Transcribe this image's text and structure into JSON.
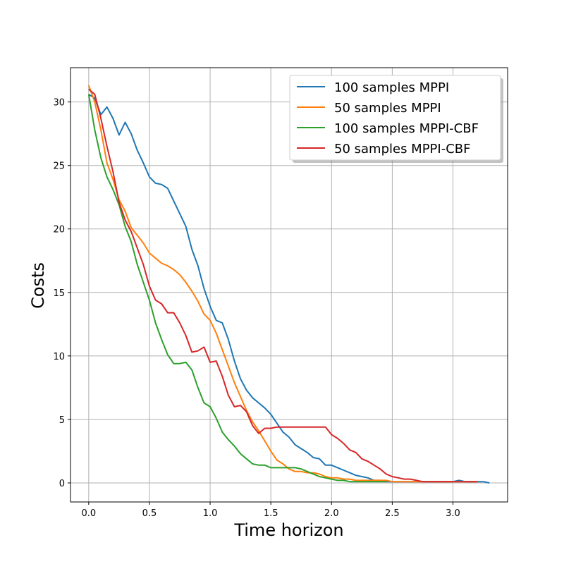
{
  "chart_data": {
    "type": "line",
    "title": "",
    "xlabel": "Time horizon",
    "ylabel": "Costs",
    "xlim": [
      -0.15,
      3.45
    ],
    "ylim": [
      -1.5,
      32.7
    ],
    "xticks": [
      "0.0",
      "0.5",
      "1.0",
      "1.5",
      "2.0",
      "2.5",
      "3.0"
    ],
    "yticks": [
      "0",
      "5",
      "10",
      "15",
      "20",
      "25",
      "30"
    ],
    "grid": true,
    "legend_position": "top-right",
    "series": [
      {
        "name": "100 samples MPPI",
        "color": "#1f77b4",
        "x": [
          0.0,
          0.05,
          0.1,
          0.15,
          0.2,
          0.25,
          0.3,
          0.35,
          0.4,
          0.45,
          0.5,
          0.55,
          0.6,
          0.65,
          0.7,
          0.75,
          0.8,
          0.85,
          0.9,
          0.95,
          1.0,
          1.05,
          1.1,
          1.15,
          1.2,
          1.25,
          1.3,
          1.35,
          1.4,
          1.45,
          1.5,
          1.55,
          1.6,
          1.65,
          1.7,
          1.75,
          1.8,
          1.85,
          1.9,
          1.95,
          2.0,
          2.05,
          2.1,
          2.15,
          2.2,
          2.25,
          2.3,
          2.35,
          2.4,
          2.45,
          2.5,
          2.55,
          2.6,
          2.65,
          2.7,
          2.75,
          2.8,
          2.85,
          2.9,
          2.95,
          3.0,
          3.05,
          3.1,
          3.15,
          3.2,
          3.25,
          3.3
        ],
        "values": [
          30.6,
          30.3,
          29.0,
          29.6,
          28.7,
          27.4,
          28.4,
          27.5,
          26.2,
          25.2,
          24.1,
          23.6,
          23.5,
          23.2,
          22.2,
          21.2,
          20.2,
          18.4,
          17.1,
          15.3,
          13.9,
          12.8,
          12.6,
          11.3,
          9.6,
          8.2,
          7.3,
          6.7,
          6.3,
          5.9,
          5.4,
          4.7,
          4.0,
          3.6,
          3.0,
          2.7,
          2.4,
          2.0,
          1.9,
          1.4,
          1.4,
          1.2,
          1.0,
          0.8,
          0.6,
          0.5,
          0.4,
          0.2,
          0.2,
          0.1,
          0.1,
          0.1,
          0.1,
          0.1,
          0.1,
          0.1,
          0.1,
          0.1,
          0.1,
          0.1,
          0.1,
          0.2,
          0.1,
          0.1,
          0.1,
          0.1,
          0.0
        ]
      },
      {
        "name": "50 samples MPPI",
        "color": "#ff7f0e",
        "x": [
          0.0,
          0.05,
          0.1,
          0.15,
          0.2,
          0.25,
          0.3,
          0.35,
          0.4,
          0.45,
          0.5,
          0.55,
          0.6,
          0.65,
          0.7,
          0.75,
          0.8,
          0.85,
          0.9,
          0.95,
          1.0,
          1.05,
          1.1,
          1.15,
          1.2,
          1.25,
          1.3,
          1.35,
          1.4,
          1.45,
          1.5,
          1.55,
          1.6,
          1.65,
          1.7,
          1.75,
          1.8,
          1.85,
          1.9,
          1.95,
          2.0,
          2.05,
          2.1,
          2.15,
          2.2,
          2.25,
          2.3,
          2.35,
          2.4,
          2.45,
          2.5,
          2.55,
          2.6,
          2.65,
          2.7,
          2.75,
          2.8,
          2.85,
          2.9,
          2.95,
          3.0,
          3.05,
          3.1,
          3.15,
          3.2
        ],
        "values": [
          31.3,
          30.0,
          27.8,
          25.2,
          23.9,
          22.3,
          21.4,
          20.1,
          19.5,
          18.9,
          18.1,
          17.7,
          17.3,
          17.1,
          16.8,
          16.4,
          15.8,
          15.1,
          14.3,
          13.3,
          12.8,
          11.8,
          10.5,
          9.2,
          7.9,
          6.8,
          5.7,
          4.8,
          4.1,
          3.3,
          2.5,
          1.8,
          1.5,
          1.1,
          0.9,
          0.9,
          0.8,
          0.8,
          0.7,
          0.5,
          0.4,
          0.4,
          0.3,
          0.3,
          0.2,
          0.2,
          0.2,
          0.2,
          0.2,
          0.2,
          0.1,
          0.1,
          0.1,
          0.1,
          0.1,
          0.1,
          0.1,
          0.1,
          0.1,
          0.1,
          0.1,
          0.1,
          0.1,
          0.1,
          0.1
        ]
      },
      {
        "name": "100 samples MPPI-CBF",
        "color": "#2ca02c",
        "x": [
          0.0,
          0.05,
          0.1,
          0.15,
          0.2,
          0.25,
          0.3,
          0.35,
          0.4,
          0.45,
          0.5,
          0.55,
          0.6,
          0.65,
          0.7,
          0.75,
          0.8,
          0.85,
          0.9,
          0.95,
          1.0,
          1.05,
          1.1,
          1.15,
          1.2,
          1.25,
          1.3,
          1.35,
          1.4,
          1.45,
          1.5,
          1.55,
          1.6,
          1.65,
          1.7,
          1.75,
          1.8,
          1.85,
          1.9,
          1.95,
          2.0,
          2.05,
          2.1,
          2.15,
          2.2,
          2.25,
          2.3,
          2.35,
          2.4,
          2.45
        ],
        "values": [
          30.6,
          27.8,
          25.6,
          24.1,
          23.1,
          21.9,
          20.2,
          19.0,
          17.2,
          15.8,
          14.4,
          12.6,
          11.3,
          10.1,
          9.4,
          9.4,
          9.5,
          8.9,
          7.5,
          6.3,
          6.0,
          5.1,
          4.0,
          3.4,
          2.9,
          2.3,
          1.9,
          1.5,
          1.4,
          1.4,
          1.2,
          1.2,
          1.2,
          1.2,
          1.2,
          1.1,
          0.9,
          0.7,
          0.5,
          0.4,
          0.3,
          0.2,
          0.2,
          0.1,
          0.1,
          0.1,
          0.1,
          0.1,
          0.1,
          0.1
        ]
      },
      {
        "name": "50 samples MPPI-CBF",
        "color": "#d62728",
        "x": [
          0.0,
          0.05,
          0.1,
          0.15,
          0.2,
          0.25,
          0.3,
          0.35,
          0.4,
          0.45,
          0.5,
          0.55,
          0.6,
          0.65,
          0.7,
          0.75,
          0.8,
          0.85,
          0.9,
          0.95,
          1.0,
          1.05,
          1.1,
          1.15,
          1.2,
          1.25,
          1.3,
          1.35,
          1.4,
          1.45,
          1.5,
          1.55,
          1.6,
          1.65,
          1.7,
          1.75,
          1.8,
          1.85,
          1.9,
          1.95,
          2.0,
          2.05,
          2.1,
          2.15,
          2.2,
          2.25,
          2.3,
          2.35,
          2.4,
          2.45,
          2.5,
          2.55,
          2.6,
          2.65,
          2.7,
          2.75,
          2.8,
          2.85,
          2.9,
          2.95,
          3.0,
          3.05,
          3.1,
          3.15,
          3.2
        ],
        "values": [
          31.0,
          30.6,
          28.7,
          26.5,
          24.5,
          22.1,
          20.7,
          19.8,
          18.5,
          17.2,
          15.5,
          14.4,
          14.1,
          13.4,
          13.4,
          12.6,
          11.6,
          10.3,
          10.4,
          10.7,
          9.5,
          9.6,
          8.4,
          6.9,
          6.0,
          6.1,
          5.6,
          4.5,
          3.9,
          4.3,
          4.3,
          4.4,
          4.4,
          4.4,
          4.4,
          4.4,
          4.4,
          4.4,
          4.4,
          4.4,
          3.8,
          3.5,
          3.1,
          2.6,
          2.4,
          1.9,
          1.7,
          1.4,
          1.1,
          0.7,
          0.5,
          0.4,
          0.3,
          0.3,
          0.2,
          0.1,
          0.1,
          0.1,
          0.1,
          0.1,
          0.1,
          0.1,
          0.1,
          0.1,
          0.1
        ]
      }
    ]
  }
}
